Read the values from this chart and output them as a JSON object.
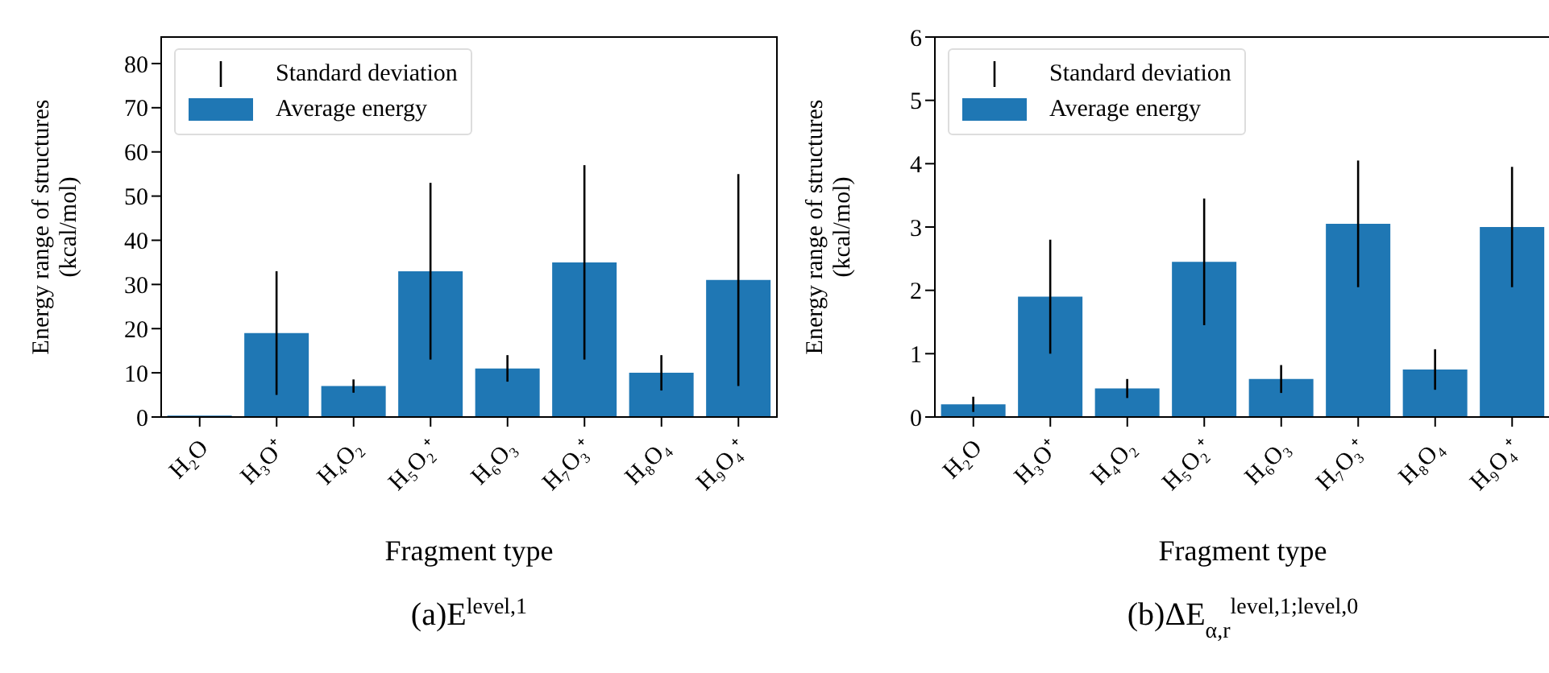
{
  "chart_data": [
    {
      "type": "bar",
      "categories": [
        "H₂O",
        "H₃O⁺",
        "H₄O₂",
        "H₅O₂⁺",
        "H₆O₃",
        "H₇O₃⁺",
        "H₈O₄",
        "H₉O₄⁺"
      ],
      "series": [
        {
          "name": "Average energy",
          "color": "#1f77b4",
          "values": [
            0.3,
            19,
            7,
            33,
            11,
            35,
            10,
            31
          ],
          "errors": [
            null,
            14,
            1.5,
            20,
            3,
            22,
            4,
            24
          ]
        }
      ],
      "xlabel": "Fragment type",
      "ylabel": "Energy range of structures (kcal/mol)",
      "ylim": [
        0,
        86
      ],
      "yticks": [
        0,
        10,
        20,
        30,
        40,
        50,
        60,
        70,
        80
      ],
      "legend": "top left",
      "grid": false,
      "annotations": [
        "Standard deviation",
        "(a)E$^{level,1}$"
      ]
    },
    {
      "type": "bar",
      "categories": [
        "H₂O",
        "H₃O⁺",
        "H₄O₂",
        "H₅O₂⁺",
        "H₆O₃",
        "H₇O₃⁺",
        "H₈O₄",
        "H₉O₄⁺"
      ],
      "series": [
        {
          "name": "Average energy",
          "color": "#1f77b4",
          "values": [
            0.2,
            1.9,
            0.45,
            2.45,
            0.6,
            3.05,
            0.75,
            3.0
          ],
          "errors": [
            0.12,
            0.9,
            0.15,
            1.0,
            0.22,
            1.0,
            0.32,
            0.95
          ]
        }
      ],
      "xlabel": "Fragment type",
      "ylabel": "Energy range of structures (kcal/mol)",
      "ylim": [
        0,
        6
      ],
      "yticks": [
        0,
        1,
        2,
        3,
        4,
        5,
        6
      ],
      "legend": "top left",
      "grid": false,
      "annotations": [
        "Standard deviation",
        "(b)ΔE$_{α,r}$$^{level,1;level,0}$"
      ]
    }
  ]
}
